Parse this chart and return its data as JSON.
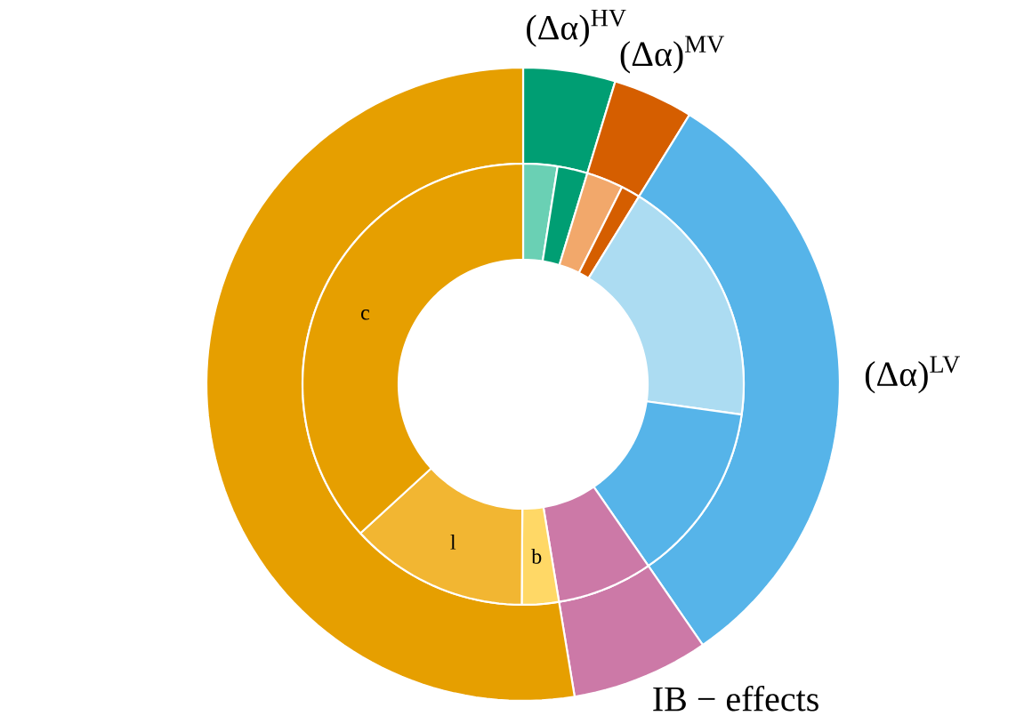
{
  "chart_data": [
    {
      "type": "donut",
      "categories": [
        "(Δα)$^{HV}$",
        "(Δα)$^{MV}$",
        "(Δα)$^{LV}$",
        "IB − effects",
        null
      ],
      "values": [
        4.7,
        4.1,
        31.6,
        7.0,
        52.6
      ],
      "colors": [
        "#009e73",
        "#d55e00",
        "#56b4e9",
        "#cc79a7",
        "#e69f00"
      ]
    },
    {
      "type": "donut",
      "categories": [
        null,
        null,
        null,
        null,
        null,
        null,
        null,
        "b",
        "l",
        "c"
      ],
      "values": [
        2.5,
        2.2,
        2.7,
        1.4,
        18.4,
        13.2,
        7.0,
        2.7,
        13.1,
        36.8
      ],
      "colors": [
        "#6ad0b4",
        "#009e73",
        "#f2a86b",
        "#d55e00",
        "#acdcf2",
        "#56b4e9",
        "#cc79a7",
        "#ffd866",
        "#f2b632",
        "#e69f00"
      ]
    }
  ]
}
